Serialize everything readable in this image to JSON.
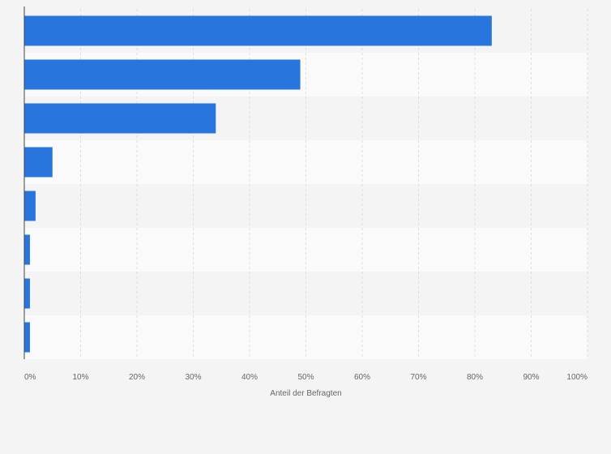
{
  "chart_data": {
    "type": "bar",
    "orientation": "horizontal",
    "categories": [
      "",
      "",
      "",
      "",
      "",
      "",
      "",
      ""
    ],
    "values": [
      83,
      49,
      34,
      5,
      2,
      1,
      1,
      1
    ],
    "xlabel": "Anteil der Befragten",
    "ylabel": "",
    "xlim": [
      0,
      100
    ],
    "x_ticks": [
      "0%",
      "10%",
      "20%",
      "30%",
      "40%",
      "50%",
      "60%",
      "70%",
      "80%",
      "90%",
      "100%"
    ],
    "grid": true,
    "legend": "none",
    "colors": {
      "bar": "#2876dd",
      "background": "#f4f4f4",
      "band_odd": "#f4f4f4",
      "band_even": "#fafafa",
      "grid": "#dddddd",
      "axis": "#444444",
      "text": "#666666"
    }
  }
}
